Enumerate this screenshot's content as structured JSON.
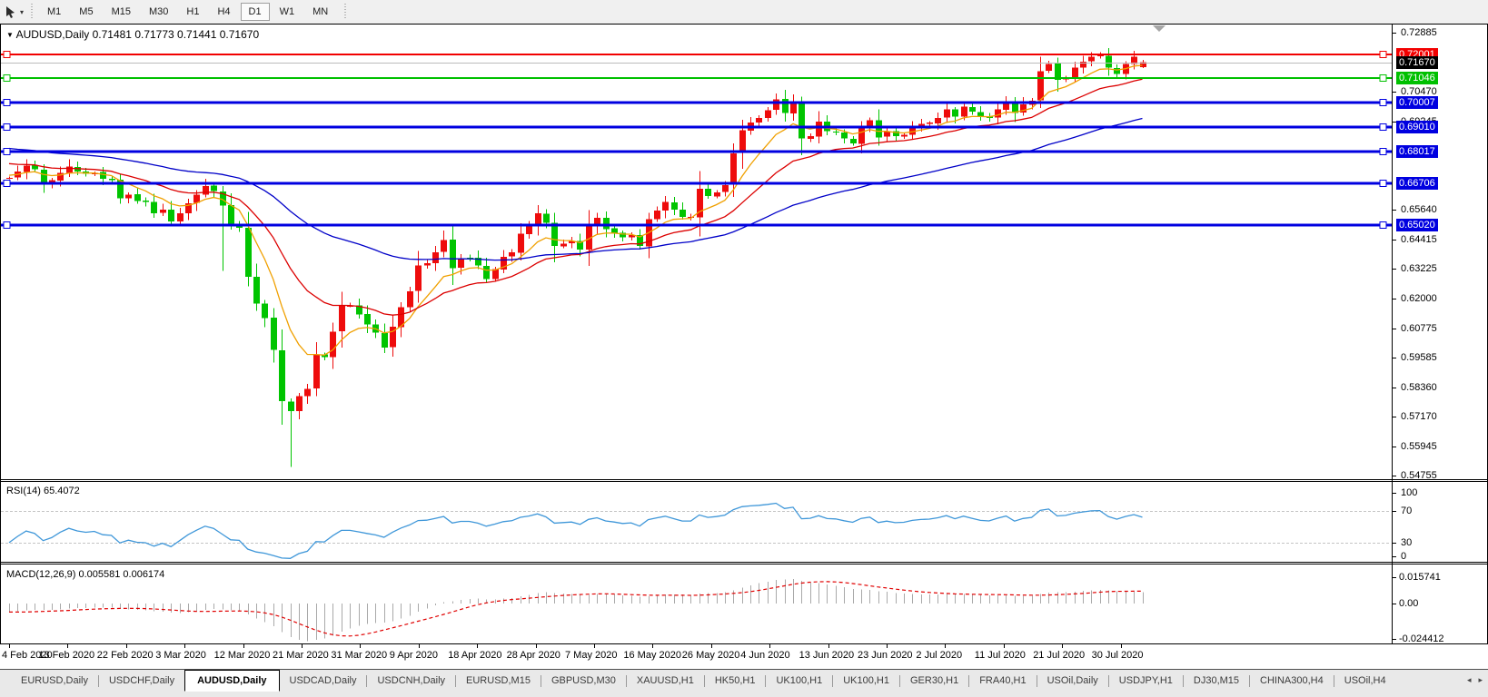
{
  "toolbar": {
    "cursor_tool_dropdown": "▾",
    "timeframes": [
      {
        "label": "M1",
        "active": false
      },
      {
        "label": "M5",
        "active": false
      },
      {
        "label": "M15",
        "active": false
      },
      {
        "label": "M30",
        "active": false
      },
      {
        "label": "H1",
        "active": false
      },
      {
        "label": "H4",
        "active": false
      },
      {
        "label": "D1",
        "active": true
      },
      {
        "label": "W1",
        "active": false
      },
      {
        "label": "MN",
        "active": false
      }
    ]
  },
  "chart_title": {
    "marker": "▼",
    "text": "AUDUSD,Daily  0.71481 0.71773 0.71441 0.71670"
  },
  "price_axis": {
    "ticks": [
      {
        "label": "0.72885",
        "value": 0.72885
      },
      {
        "label": "0.70470",
        "value": 0.7047
      },
      {
        "label": "0.69245",
        "value": 0.69245
      },
      {
        "label": "0.65640",
        "value": 0.6564
      },
      {
        "label": "0.64415",
        "value": 0.64415
      },
      {
        "label": "0.63225",
        "value": 0.63225
      },
      {
        "label": "0.62000",
        "value": 0.62
      },
      {
        "label": "0.60775",
        "value": 0.60775
      },
      {
        "label": "0.59585",
        "value": 0.59585
      },
      {
        "label": "0.58360",
        "value": 0.5836
      },
      {
        "label": "0.57170",
        "value": 0.5717
      },
      {
        "label": "0.55945",
        "value": 0.55945
      },
      {
        "label": "0.54755",
        "value": 0.54755
      }
    ],
    "badges": [
      {
        "label": "0.72001",
        "value": 0.72001,
        "color": "#f20000"
      },
      {
        "label": "0.71670",
        "value": 0.7167,
        "color": "#000000"
      },
      {
        "label": "0.71046",
        "value": 0.71046,
        "color": "#00c000"
      },
      {
        "label": "0.70007",
        "value": 0.70007,
        "color": "#0000e0"
      },
      {
        "label": "0.69010",
        "value": 0.6901,
        "color": "#0000e0"
      },
      {
        "label": "0.68017",
        "value": 0.68017,
        "color": "#0000e0"
      },
      {
        "label": "0.66706",
        "value": 0.66706,
        "color": "#0000e0"
      },
      {
        "label": "0.65020",
        "value": 0.6502,
        "color": "#0000e0"
      }
    ]
  },
  "chart_data": {
    "type": "candlestick",
    "symbol": "AUDUSD",
    "timeframe": "Daily",
    "ohlc_current": {
      "open": 0.71481,
      "high": 0.71773,
      "low": 0.71441,
      "close": 0.7167
    },
    "price_range": {
      "top": 0.72885,
      "bottom": 0.54755
    },
    "up_color": "#ee0c0c",
    "down_color": "#00c400",
    "x_axis_dates": [
      "4 Feb 2020",
      "13 Feb 2020",
      "22 Feb 2020",
      "3 Mar 2020",
      "12 Mar 2020",
      "21 Mar 2020",
      "31 Mar 2020",
      "9 Apr 2020",
      "18 Apr 2020",
      "28 Apr 2020",
      "7 May 2020",
      "16 May 2020",
      "26 May 2020",
      "4 Jun 2020",
      "13 Jun 2020",
      "23 Jun 2020",
      "2 Jul 2020",
      "11 Jul 2020",
      "21 Jul 2020",
      "30 Jul 2020"
    ],
    "closes": [
      0.6695,
      0.672,
      0.6745,
      0.673,
      0.667,
      0.6685,
      0.6715,
      0.674,
      0.672,
      0.671,
      0.6715,
      0.669,
      0.6685,
      0.661,
      0.6625,
      0.66,
      0.6595,
      0.655,
      0.6565,
      0.6515,
      0.655,
      0.659,
      0.6625,
      0.666,
      0.664,
      0.658,
      0.65,
      0.649,
      0.629,
      0.618,
      0.612,
      0.599,
      0.578,
      0.574,
      0.58,
      0.583,
      0.597,
      0.596,
      0.6065,
      0.617,
      0.617,
      0.6135,
      0.6095,
      0.606,
      0.6,
      0.6085,
      0.6165,
      0.623,
      0.6335,
      0.6345,
      0.639,
      0.644,
      0.6325,
      0.6365,
      0.6365,
      0.6335,
      0.628,
      0.632,
      0.637,
      0.639,
      0.6465,
      0.6495,
      0.655,
      0.651,
      0.6415,
      0.6425,
      0.6435,
      0.64,
      0.6495,
      0.653,
      0.6485,
      0.647,
      0.645,
      0.646,
      0.6415,
      0.6525,
      0.656,
      0.6595,
      0.6565,
      0.6535,
      0.6535,
      0.665,
      0.662,
      0.6635,
      0.6665,
      0.6795,
      0.689,
      0.692,
      0.694,
      0.697,
      0.7015,
      0.696,
      0.7,
      0.6855,
      0.6865,
      0.6925,
      0.6885,
      0.688,
      0.6855,
      0.6835,
      0.6905,
      0.693,
      0.686,
      0.6885,
      0.6865,
      0.687,
      0.69,
      0.6915,
      0.692,
      0.694,
      0.6975,
      0.6945,
      0.6985,
      0.6965,
      0.6945,
      0.694,
      0.6975,
      0.7005,
      0.696,
      0.6995,
      0.701,
      0.713,
      0.716,
      0.7095,
      0.7105,
      0.7145,
      0.717,
      0.719,
      0.7195,
      0.7145,
      0.712,
      0.716,
      0.719,
      0.7167
    ],
    "prehistory_closes": [
      0.685,
      0.687,
      0.6885,
      0.69,
      0.692,
      0.69,
      0.688,
      0.686,
      0.684,
      0.683,
      0.682,
      0.684,
      0.686,
      0.688,
      0.69,
      0.689,
      0.687,
      0.685,
      0.683,
      0.681,
      0.68,
      0.682,
      0.684,
      0.685,
      0.686,
      0.688,
      0.69,
      0.692,
      0.694,
      0.696,
      0.698,
      0.7,
      0.699,
      0.697,
      0.695,
      0.693,
      0.691,
      0.689,
      0.687,
      0.685,
      0.687,
      0.689,
      0.691,
      0.69,
      0.688,
      0.685,
      0.682,
      0.68,
      0.678,
      0.676,
      0.674,
      0.672,
      0.67,
      0.669,
      0.668,
      0.669,
      0.67,
      0.671,
      0.67,
      0.669
    ],
    "overrides": {
      "0": {
        "open": 0.669
      },
      "25": {
        "high": 0.666,
        "low": 0.6313
      },
      "33": {
        "low": 0.551
      },
      "90": {
        "high": 0.704
      },
      "129": {
        "high": 0.7225
      },
      "133": {
        "open": 0.71481,
        "high": 0.71773,
        "low": 0.71441
      }
    },
    "moving_averages": [
      {
        "name": "ma-fast",
        "period": 8,
        "color": "#f0a000"
      },
      {
        "name": "ma-mid",
        "period": 20,
        "color": "#dc0000"
      },
      {
        "name": "ma-slow",
        "period": 55,
        "color": "#0000c8"
      }
    ],
    "horizontal_lines": [
      {
        "price": 0.72001,
        "color": "#f20000",
        "width": 2
      },
      {
        "price": 0.71046,
        "color": "#00c000",
        "width": 2
      },
      {
        "price": 0.70007,
        "color": "#0000e0",
        "width": 3
      },
      {
        "price": 0.6901,
        "color": "#0000e0",
        "width": 3
      },
      {
        "price": 0.68017,
        "color": "#0000e0",
        "width": 3
      },
      {
        "price": 0.66706,
        "color": "#0000e0",
        "width": 3
      },
      {
        "price": 0.6502,
        "color": "#0000e0",
        "width": 3
      }
    ],
    "current_price_line": {
      "price": 0.7167,
      "color": "#bcbcbc"
    }
  },
  "rsi": {
    "label": "RSI(14) 65.4072",
    "period": 14,
    "value": 65.4072,
    "axis_labels": [
      "100",
      "70",
      "30",
      "0"
    ],
    "levels": [
      70,
      30
    ],
    "line_color": "#3f97d9"
  },
  "macd": {
    "label": "MACD(12,26,9) 0.005581 0.006174",
    "params": "12,26,9",
    "macd_value": 0.005581,
    "signal_value": 0.006174,
    "axis_labels": [
      "0.015741",
      "0.00",
      "-0.024412"
    ],
    "histogram_color": "#a9a9a9",
    "signal_color": "#e00000"
  },
  "tabs": {
    "nav_left": "◂",
    "nav_right": "▸",
    "items": [
      {
        "label": "EURUSD,Daily",
        "active": false
      },
      {
        "label": "USDCHF,Daily",
        "active": false
      },
      {
        "label": "AUDUSD,Daily",
        "active": true
      },
      {
        "label": "USDCAD,Daily",
        "active": false
      },
      {
        "label": "USDCNH,Daily",
        "active": false
      },
      {
        "label": "EURUSD,M15",
        "active": false
      },
      {
        "label": "GBPUSD,M30",
        "active": false
      },
      {
        "label": "XAUUSD,H1",
        "active": false
      },
      {
        "label": "HK50,H1",
        "active": false
      },
      {
        "label": "UK100,H1",
        "active": false
      },
      {
        "label": "UK100,H1",
        "active": false
      },
      {
        "label": "GER30,H1",
        "active": false
      },
      {
        "label": "FRA40,H1",
        "active": false
      },
      {
        "label": "USOil,Daily",
        "active": false
      },
      {
        "label": "USDJPY,H1",
        "active": false
      },
      {
        "label": "DJ30,M15",
        "active": false
      },
      {
        "label": "CHINA300,H4",
        "active": false
      },
      {
        "label": "USOil,H4",
        "active": false
      }
    ]
  }
}
